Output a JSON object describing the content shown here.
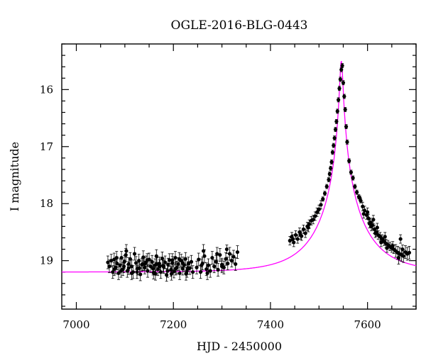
{
  "chart_data": {
    "type": "scatter",
    "title": "OGLE-2016-BLG-0443",
    "xlabel": "HJD - 2450000",
    "ylabel": "I magnitude",
    "xlim": [
      6970,
      7700
    ],
    "ylim": [
      19.85,
      15.2
    ],
    "y_inverted": true,
    "xticks": [
      7000,
      7200,
      7400,
      7600
    ],
    "yticks": [
      16,
      17,
      18,
      19
    ],
    "colors": {
      "data": "#000000",
      "model": "#ff00ff",
      "axes": "#000000"
    },
    "series": [
      {
        "kind": "points",
        "error_bars": true,
        "data": [
          [
            7065,
            19.03
          ],
          [
            7068,
            19.1
          ],
          [
            7072,
            19.0
          ],
          [
            7075,
            19.2
          ],
          [
            7078,
            18.98
          ],
          [
            7081,
            19.12
          ],
          [
            7084,
            19.05
          ],
          [
            7087,
            19.22
          ],
          [
            7090,
            19.08
          ],
          [
            7093,
            18.95
          ],
          [
            7096,
            19.15
          ],
          [
            7099,
            19.02
          ],
          [
            7102,
            18.9
          ],
          [
            7105,
            19.18
          ],
          [
            7108,
            19.06
          ],
          [
            7111,
            18.97
          ],
          [
            7114,
            19.1
          ],
          [
            7117,
            19.2
          ],
          [
            7120,
            18.88
          ],
          [
            7123,
            19.04
          ],
          [
            7126,
            19.14
          ],
          [
            7129,
            19.0
          ],
          [
            7132,
            19.24
          ],
          [
            7135,
            19.07
          ],
          [
            7138,
            18.94
          ],
          [
            7141,
            19.12
          ],
          [
            7144,
            19.03
          ],
          [
            7147,
            19.18
          ],
          [
            7150,
            18.98
          ],
          [
            7153,
            19.1
          ],
          [
            7156,
            19.02
          ],
          [
            7159,
            19.21
          ],
          [
            7162,
            19.08
          ],
          [
            7165,
            18.92
          ],
          [
            7168,
            19.15
          ],
          [
            7171,
            19.05
          ],
          [
            7174,
            19.2
          ],
          [
            7177,
            18.96
          ],
          [
            7180,
            19.11
          ],
          [
            7183,
            19.03
          ],
          [
            7186,
            19.25
          ],
          [
            7189,
            19.07
          ],
          [
            7192,
            18.99
          ],
          [
            7195,
            19.16
          ],
          [
            7198,
            19.04
          ],
          [
            7201,
            19.19
          ],
          [
            7204,
            18.95
          ],
          [
            7207,
            19.12
          ],
          [
            7210,
            19.06
          ],
          [
            7213,
            19.22
          ],
          [
            7216,
            19.0
          ],
          [
            7219,
            19.14
          ],
          [
            7222,
            19.08
          ],
          [
            7225,
            18.97
          ],
          [
            7228,
            19.18
          ],
          [
            7231,
            19.05
          ],
          [
            7234,
            19.13
          ],
          [
            7237,
            19.02
          ],
          [
            7240,
            19.2
          ],
          [
            7078,
            19.15
          ],
          [
            7092,
            19.18
          ],
          [
            7108,
            19.13
          ],
          [
            7125,
            19.2
          ],
          [
            7140,
            19.06
          ],
          [
            7158,
            19.14
          ],
          [
            7172,
            19.1
          ],
          [
            7188,
            19.18
          ],
          [
            7205,
            19.14
          ],
          [
            7220,
            19.05
          ],
          [
            7083,
            18.95
          ],
          [
            7098,
            19.1
          ],
          [
            7114,
            19.22
          ],
          [
            7130,
            19.13
          ],
          [
            7146,
            18.99
          ],
          [
            7163,
            19.23
          ],
          [
            7179,
            19.09
          ],
          [
            7196,
            19.23
          ],
          [
            7212,
            18.97
          ],
          [
            7230,
            19.13
          ],
          [
            7103,
            18.83
          ],
          [
            7137,
            19.06
          ],
          [
            7166,
            19.06
          ],
          [
            7198,
            18.99
          ],
          [
            7226,
            19.23
          ],
          [
            7248,
            19.12
          ],
          [
            7252,
            18.98
          ],
          [
            7256,
            19.2
          ],
          [
            7260,
            19.05
          ],
          [
            7264,
            18.92
          ],
          [
            7268,
            19.15
          ],
          [
            7272,
            19.08
          ],
          [
            7276,
            19.18
          ],
          [
            7280,
            18.95
          ],
          [
            7284,
            19.1
          ],
          [
            7288,
            19.02
          ],
          [
            7292,
            19.16
          ],
          [
            7296,
            18.9
          ],
          [
            7300,
            19.07
          ],
          [
            7304,
            19.12
          ],
          [
            7308,
            18.97
          ],
          [
            7312,
            19.05
          ],
          [
            7316,
            18.88
          ],
          [
            7320,
            19.0
          ],
          [
            7324,
            18.93
          ],
          [
            7328,
            19.06
          ],
          [
            7332,
            18.85
          ],
          [
            7262,
            18.83
          ],
          [
            7290,
            18.88
          ],
          [
            7310,
            18.8
          ],
          [
            7270,
            19.22
          ],
          [
            7300,
            19.1
          ],
          [
            7258,
            19.08
          ],
          [
            7440,
            18.65
          ],
          [
            7444,
            18.58
          ],
          [
            7448,
            18.68
          ],
          [
            7452,
            18.55
          ],
          [
            7456,
            18.62
          ],
          [
            7460,
            18.5
          ],
          [
            7464,
            18.57
          ],
          [
            7468,
            18.45
          ],
          [
            7472,
            18.52
          ],
          [
            7476,
            18.4
          ],
          [
            7480,
            18.36
          ],
          [
            7484,
            18.3
          ],
          [
            7488,
            18.28
          ],
          [
            7492,
            18.22
          ],
          [
            7496,
            18.15
          ],
          [
            7500,
            18.1
          ],
          [
            7504,
            18.02
          ],
          [
            7508,
            17.92
          ],
          [
            7512,
            17.82
          ],
          [
            7516,
            17.7
          ],
          [
            7520,
            17.58
          ],
          [
            7522,
            17.48
          ],
          [
            7524,
            17.38
          ],
          [
            7526,
            17.27
          ],
          [
            7528,
            17.1
          ],
          [
            7530,
            16.98
          ],
          [
            7532,
            16.85
          ],
          [
            7534,
            16.7
          ],
          [
            7536,
            16.56
          ],
          [
            7538,
            16.38
          ],
          [
            7540,
            16.18
          ],
          [
            7542,
            15.98
          ],
          [
            7544,
            15.82
          ],
          [
            7546,
            15.65
          ],
          [
            7548,
            15.58
          ],
          [
            7550,
            15.88
          ],
          [
            7552,
            16.12
          ],
          [
            7554,
            16.35
          ],
          [
            7556,
            16.65
          ],
          [
            7558,
            16.92
          ],
          [
            7562,
            17.25
          ],
          [
            7566,
            17.45
          ],
          [
            7570,
            17.55
          ],
          [
            7574,
            17.7
          ],
          [
            7578,
            17.8
          ],
          [
            7582,
            17.88
          ],
          [
            7586,
            17.95
          ],
          [
            7590,
            18.05
          ],
          [
            7594,
            18.12
          ],
          [
            7598,
            18.2
          ],
          [
            7602,
            18.26
          ],
          [
            7606,
            18.33
          ],
          [
            7610,
            18.38
          ],
          [
            7614,
            18.45
          ],
          [
            7618,
            18.5
          ],
          [
            7622,
            18.55
          ],
          [
            7626,
            18.58
          ],
          [
            7630,
            18.62
          ],
          [
            7634,
            18.66
          ],
          [
            7638,
            18.7
          ],
          [
            7642,
            18.72
          ],
          [
            7646,
            18.75
          ],
          [
            7650,
            18.78
          ],
          [
            7654,
            18.8
          ],
          [
            7658,
            18.83
          ],
          [
            7662,
            18.86
          ],
          [
            7666,
            18.88
          ],
          [
            7670,
            18.9
          ],
          [
            7674,
            18.92
          ],
          [
            7678,
            18.85
          ],
          [
            7682,
            18.88
          ],
          [
            7686,
            18.86
          ],
          [
            7446,
            18.62
          ],
          [
            7462,
            18.55
          ],
          [
            7478,
            18.42
          ],
          [
            7604,
            18.35
          ],
          [
            7616,
            18.52
          ],
          [
            7628,
            18.68
          ],
          [
            7640,
            18.78
          ],
          [
            7652,
            18.74
          ],
          [
            7664,
            18.95
          ],
          [
            7668,
            18.62
          ],
          [
            7672,
            18.8
          ],
          [
            7620,
            18.42
          ],
          [
            7636,
            18.58
          ],
          [
            7608,
            18.4
          ],
          [
            7612,
            18.28
          ],
          [
            7600,
            18.15
          ],
          [
            7592,
            18.18
          ],
          [
            7584,
            17.9
          ]
        ]
      },
      {
        "kind": "model",
        "baseline": 19.2,
        "peak_time": 7546,
        "peak_mag": 15.5
      }
    ]
  }
}
